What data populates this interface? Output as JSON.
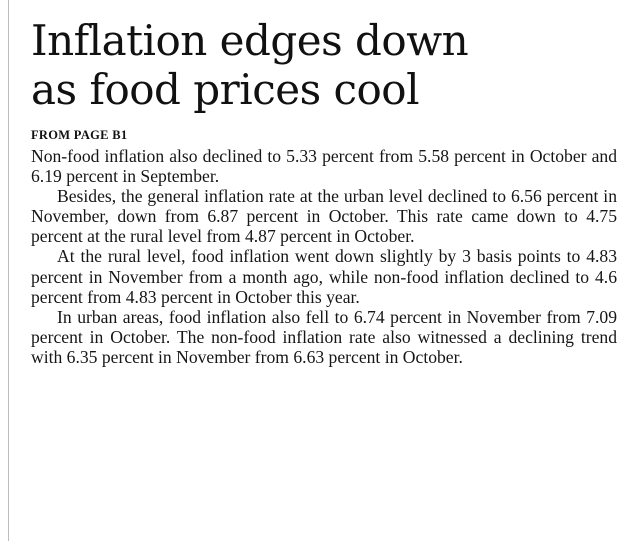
{
  "article": {
    "headline_lines": [
      "Inflation edges down",
      "as food prices cool"
    ],
    "kicker": "FROM PAGE B1",
    "paragraphs": [
      "Non-food inflation also declined to 5.33 percent from 5.58 percent in October and 6.19 percent in September.",
      "Besides, the general inflation rate at the urban level declined to 6.56 percent in November, down from 6.87 percent in October. This rate came down to 4.75 percent at the rural level from 4.87 percent in October.",
      "At the rural level, food inflation went down slightly by 3 basis points to 4.83 percent in November from a month ago, while non-food inflation declined to 4.6 percent from 4.83 percent in October this year.",
      "In urban areas, food inflation also fell to 6.74 percent in November from 7.09 percent in October. The non-food inflation rate also witnessed a declining trend with 6.35 percent in November from 6.63 percent in October."
    ]
  }
}
